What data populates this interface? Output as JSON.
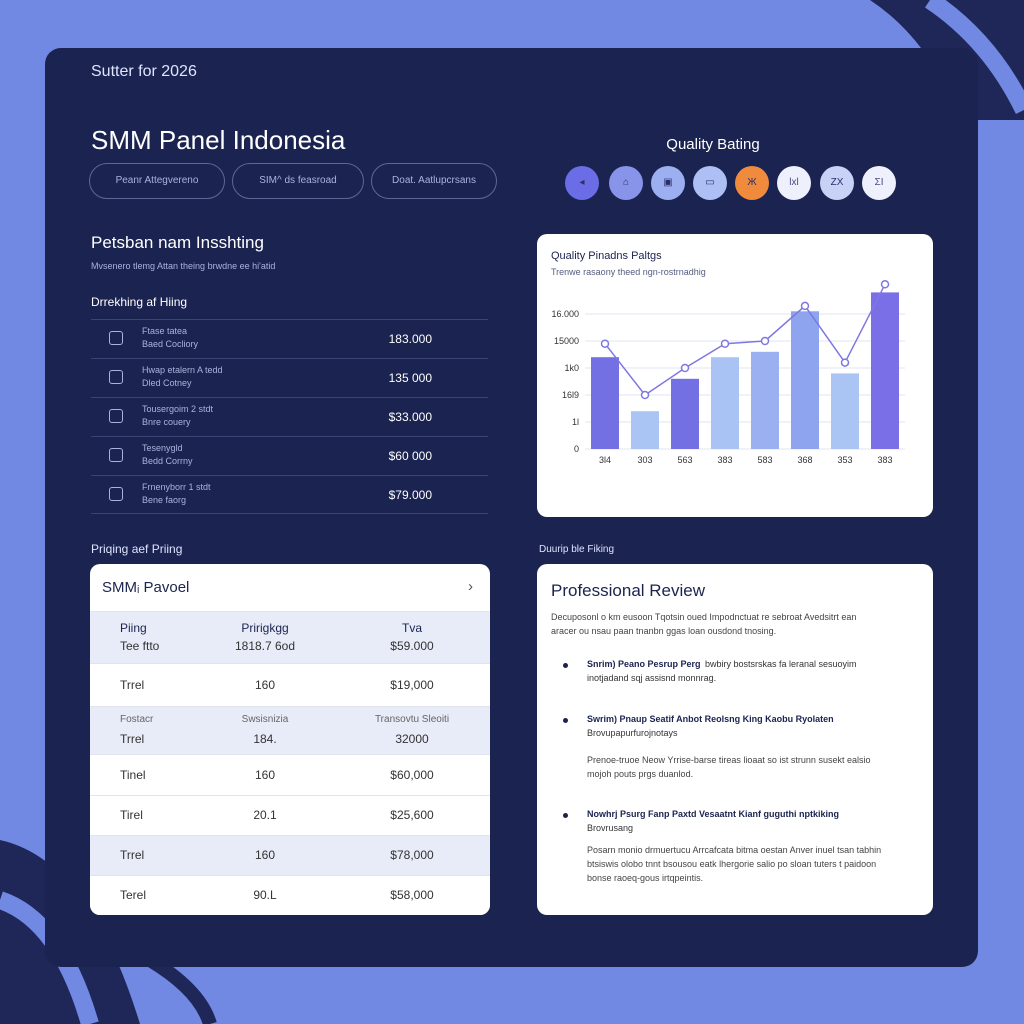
{
  "header": {
    "eyebrow": "Sutter for 2026",
    "title": "SMM Panel Indonesia",
    "buttons": [
      "Peanr Attegvereno",
      "SIM^ ds feasroad",
      "Doat. Aatlupcrsans"
    ]
  },
  "rating": {
    "title": "Quality Bating",
    "icons": [
      {
        "label": "◂",
        "color": "#6a6de6"
      },
      {
        "label": "⌂",
        "color": "#8794e9"
      },
      {
        "label": "▣",
        "color": "#9cb0f1"
      },
      {
        "label": "▭",
        "color": "#adbff5"
      },
      {
        "label": "Ж",
        "color": "#f08b3d"
      },
      {
        "label": "lxl",
        "color": "#eef0fb"
      },
      {
        "label": "ZX",
        "color": "#c7d2f6"
      },
      {
        "label": "ΣΙ",
        "color": "#eef0fb"
      }
    ]
  },
  "insights": {
    "title": "Petsban nam Insshting",
    "subtitle": "Mvsenero tlemg Attan theing brwdne ee hi'atid",
    "list_title": "Drrekhing af Hiing",
    "rows": [
      {
        "name": "Ftase tatea",
        "sub": "Baed Cocliory",
        "price": "183.000"
      },
      {
        "name": "Hwap etalern A tedd",
        "sub": "Dled Cotney",
        "price": "135 000"
      },
      {
        "name": "Tousergoim 2 stdt",
        "sub": "Bnre couery",
        "price": "$33.000"
      },
      {
        "name": "Tesenygld",
        "sub": "Bedd Corrny",
        "price": "$60 000"
      },
      {
        "name": "Frnenyborr 1 stdt",
        "sub": "Bene faorg",
        "price": "$79.000"
      }
    ]
  },
  "chart_data": {
    "type": "bar",
    "title": "Quality Pinadns Paltgs",
    "subtitle": "Trenwe rasaony theed ngn-rostrnadhig",
    "categories": [
      "3l4",
      "303",
      "563",
      "383",
      "583",
      "368",
      "353",
      "383"
    ],
    "values": [
      3.4,
      1.4,
      2.6,
      3.4,
      3.6,
      5.1,
      2.8,
      5.8
    ],
    "colors": [
      "#7370e3",
      "#aac4f4",
      "#7370e3",
      "#a9c4f4",
      "#9ab0f0",
      "#8ea4ee",
      "#aac4f4",
      "#7a6fe6"
    ],
    "line": {
      "values": [
        3.9,
        2.0,
        3.0,
        3.9,
        4.0,
        5.3,
        3.2,
        6.1
      ],
      "color": "#7e78e0"
    },
    "ylim": [
      0,
      6.2
    ],
    "yticks": [
      {
        "value": 0,
        "label": "0"
      },
      {
        "value": 1,
        "label": "1l"
      },
      {
        "value": 2,
        "label": "16l9"
      },
      {
        "value": 3,
        "label": "1k0"
      },
      {
        "value": 4,
        "label": "15000"
      },
      {
        "value": 5,
        "label": "16.000"
      }
    ],
    "grid": true
  },
  "pricing": {
    "section": "Priqing aef Priing",
    "title": "SMMᵢ Pavoel",
    "arrow": "›",
    "rows": [
      {
        "shaded": true,
        "lines": [
          [
            "Piing",
            "Pririgkgg",
            "Tva"
          ],
          [
            "Tee ftto",
            "1818.7 6od",
            "$59.000"
          ]
        ]
      },
      {
        "shaded": false,
        "lines": [
          [
            "Trrel",
            "160",
            "$19,000"
          ]
        ]
      },
      {
        "shaded": true,
        "lines": [
          [
            "Fostacr",
            "Swsisnizia",
            "Transovtu Sleoiti"
          ],
          [
            "Trrel",
            "184.",
            "32000"
          ]
        ]
      },
      {
        "shaded": false,
        "lines": [
          [
            "Tinel",
            "160",
            "$60,000"
          ]
        ]
      },
      {
        "shaded": false,
        "lines": [
          [
            "Tirel",
            "20.1",
            "$25,600"
          ]
        ]
      },
      {
        "shaded": true,
        "lines": [
          [
            "Trrel",
            "160",
            "$78,000"
          ]
        ]
      },
      {
        "shaded": false,
        "lines": [
          [
            "Terel",
            "90.L",
            "$58,000"
          ]
        ]
      }
    ]
  },
  "review": {
    "section": "Duurip ble Fiking",
    "title": "Professional Review",
    "intro": [
      "Decuposonl o km eusoon Tqotsin oued Impodnctuat re sebroat Avedsitrt ean",
      "aracer ou nsau paan tnanbn ggas loan ousdond tnosing."
    ],
    "items": [
      {
        "heading": "Snrim) Peano Pesrup Perg",
        "lines": [
          "bwbiry bostsrskas fa leranal sesuoyim",
          "inotjadand sqj assisnd monnrag."
        ],
        "text": []
      },
      {
        "heading": "Swrim) Pnaup Seatif Anbot Reolsng King Kaobu Ryolaten",
        "lines": [
          "Brovupapurfurojnotays"
        ],
        "text": [
          "Prenoe-truoe Neow Yrrise-barse tireas lioaat so ist strunn susekt ealsio",
          "mojoh pouts prgs duanlod."
        ]
      },
      {
        "heading": "Nowhrj Psurg Fanp Paxtd Vesaatnt Kianf guguthi nptkiking",
        "lines": [
          "Brovrusang"
        ],
        "text": [
          "Posarn monio drmuertucu Arrcafcata bitma oestan Anver inuel tsan tabhin",
          "btsiswis olobo tnnt bsousou eatk lhergorie salio po sloan tuters t paidoon",
          "bonse raoeq-gous irtqpeintis."
        ]
      }
    ]
  }
}
